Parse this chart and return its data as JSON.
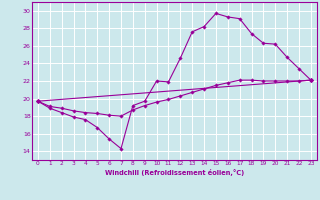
{
  "xlabel": "Windchill (Refroidissement éolien,°C)",
  "bg_color": "#cce8ec",
  "grid_color": "#ffffff",
  "line_color": "#990099",
  "xlim": [
    -0.5,
    23.5
  ],
  "ylim": [
    13.0,
    31.0
  ],
  "yticks": [
    14,
    16,
    18,
    20,
    22,
    24,
    26,
    28,
    30
  ],
  "xticks": [
    0,
    1,
    2,
    3,
    4,
    5,
    6,
    7,
    8,
    9,
    10,
    11,
    12,
    13,
    14,
    15,
    16,
    17,
    18,
    19,
    20,
    21,
    22,
    23
  ],
  "series1_x": [
    0,
    1,
    2,
    3,
    4,
    5,
    6,
    7,
    8,
    9,
    10,
    11,
    12,
    13,
    14,
    15,
    16,
    17,
    18,
    19,
    20,
    21,
    22,
    23
  ],
  "series1_y": [
    19.7,
    18.9,
    18.4,
    17.9,
    17.6,
    16.7,
    15.4,
    14.3,
    19.2,
    19.7,
    22.0,
    21.9,
    24.6,
    27.6,
    28.2,
    29.7,
    29.3,
    29.1,
    27.4,
    26.3,
    26.2,
    24.7,
    23.4,
    22.1
  ],
  "series2_x": [
    0,
    23
  ],
  "series2_y": [
    19.7,
    22.1
  ],
  "series3_x": [
    0,
    1,
    2,
    3,
    4,
    5,
    6,
    7,
    8,
    9,
    10,
    11,
    12,
    13,
    14,
    15,
    16,
    17,
    18,
    19,
    20,
    21,
    22,
    23
  ],
  "series3_y": [
    19.7,
    19.1,
    18.9,
    18.6,
    18.4,
    18.3,
    18.1,
    18.0,
    18.7,
    19.2,
    19.6,
    19.9,
    20.3,
    20.7,
    21.1,
    21.5,
    21.8,
    22.1,
    22.1,
    22.0,
    22.0,
    22.0,
    22.0,
    22.1
  ]
}
